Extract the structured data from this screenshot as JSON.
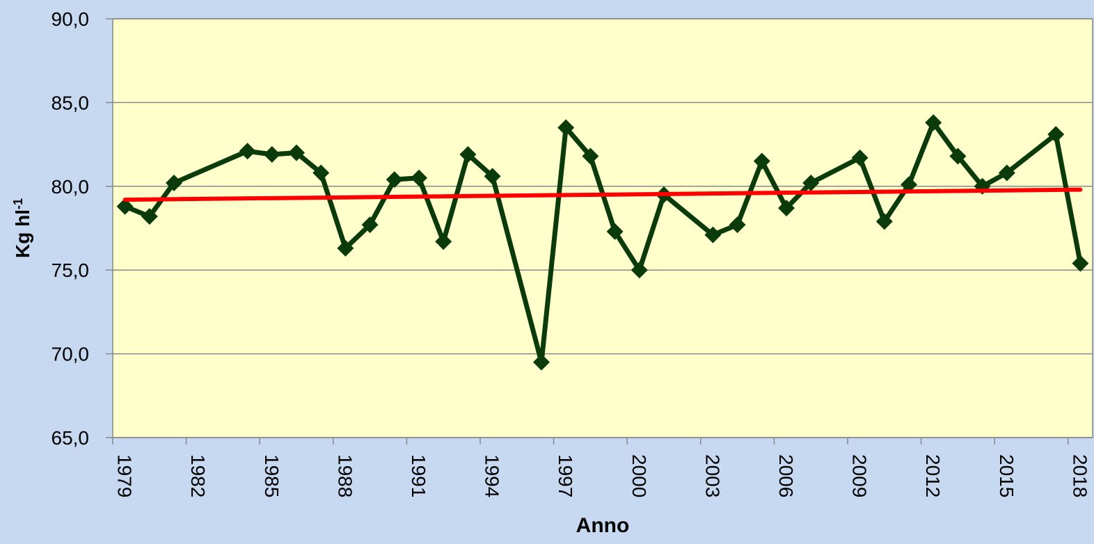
{
  "chart_data": {
    "type": "line",
    "x_label": "Anno",
    "y_label": "Kg hl",
    "y_label_sup": "-1",
    "categories": [
      "1979",
      null,
      null,
      "1982",
      null,
      null,
      "1985",
      null,
      null,
      "1988",
      null,
      null,
      "1991",
      null,
      null,
      "1994",
      null,
      null,
      "1997",
      null,
      null,
      "2000",
      null,
      null,
      "2003",
      null,
      null,
      "2006",
      null,
      null,
      "2009",
      null,
      null,
      "2012",
      null,
      null,
      "2015",
      null,
      null,
      "2018"
    ],
    "series": [
      {
        "color": "#0b3a0b",
        "values": [
          78.8,
          78.2,
          80.2,
          null,
          null,
          82.1,
          81.9,
          82.0,
          80.8,
          76.3,
          77.7,
          80.4,
          80.5,
          76.7,
          81.9,
          80.6,
          null,
          69.5,
          83.5,
          81.8,
          77.3,
          75.0,
          79.5,
          null,
          77.1,
          77.7,
          81.5,
          78.7,
          80.2,
          null,
          81.7,
          77.9,
          80.1,
          83.8,
          81.8,
          80.0,
          80.8,
          null,
          83.1,
          75.4
        ]
      }
    ],
    "trend": {
      "color": "#ff0000",
      "values": [
        79.2,
        79.8
      ]
    },
    "ylim": [
      65,
      90
    ],
    "yticks": [
      {
        "value": 65,
        "label": "65,0"
      },
      {
        "value": 70,
        "label": "70,0"
      },
      {
        "value": 75,
        "label": "75,0"
      },
      {
        "value": 80,
        "label": "80,0"
      },
      {
        "value": 85,
        "label": "85,0"
      },
      {
        "value": 90,
        "label": "90,0"
      }
    ],
    "grid": true,
    "plot_background": "#ffffcc"
  }
}
